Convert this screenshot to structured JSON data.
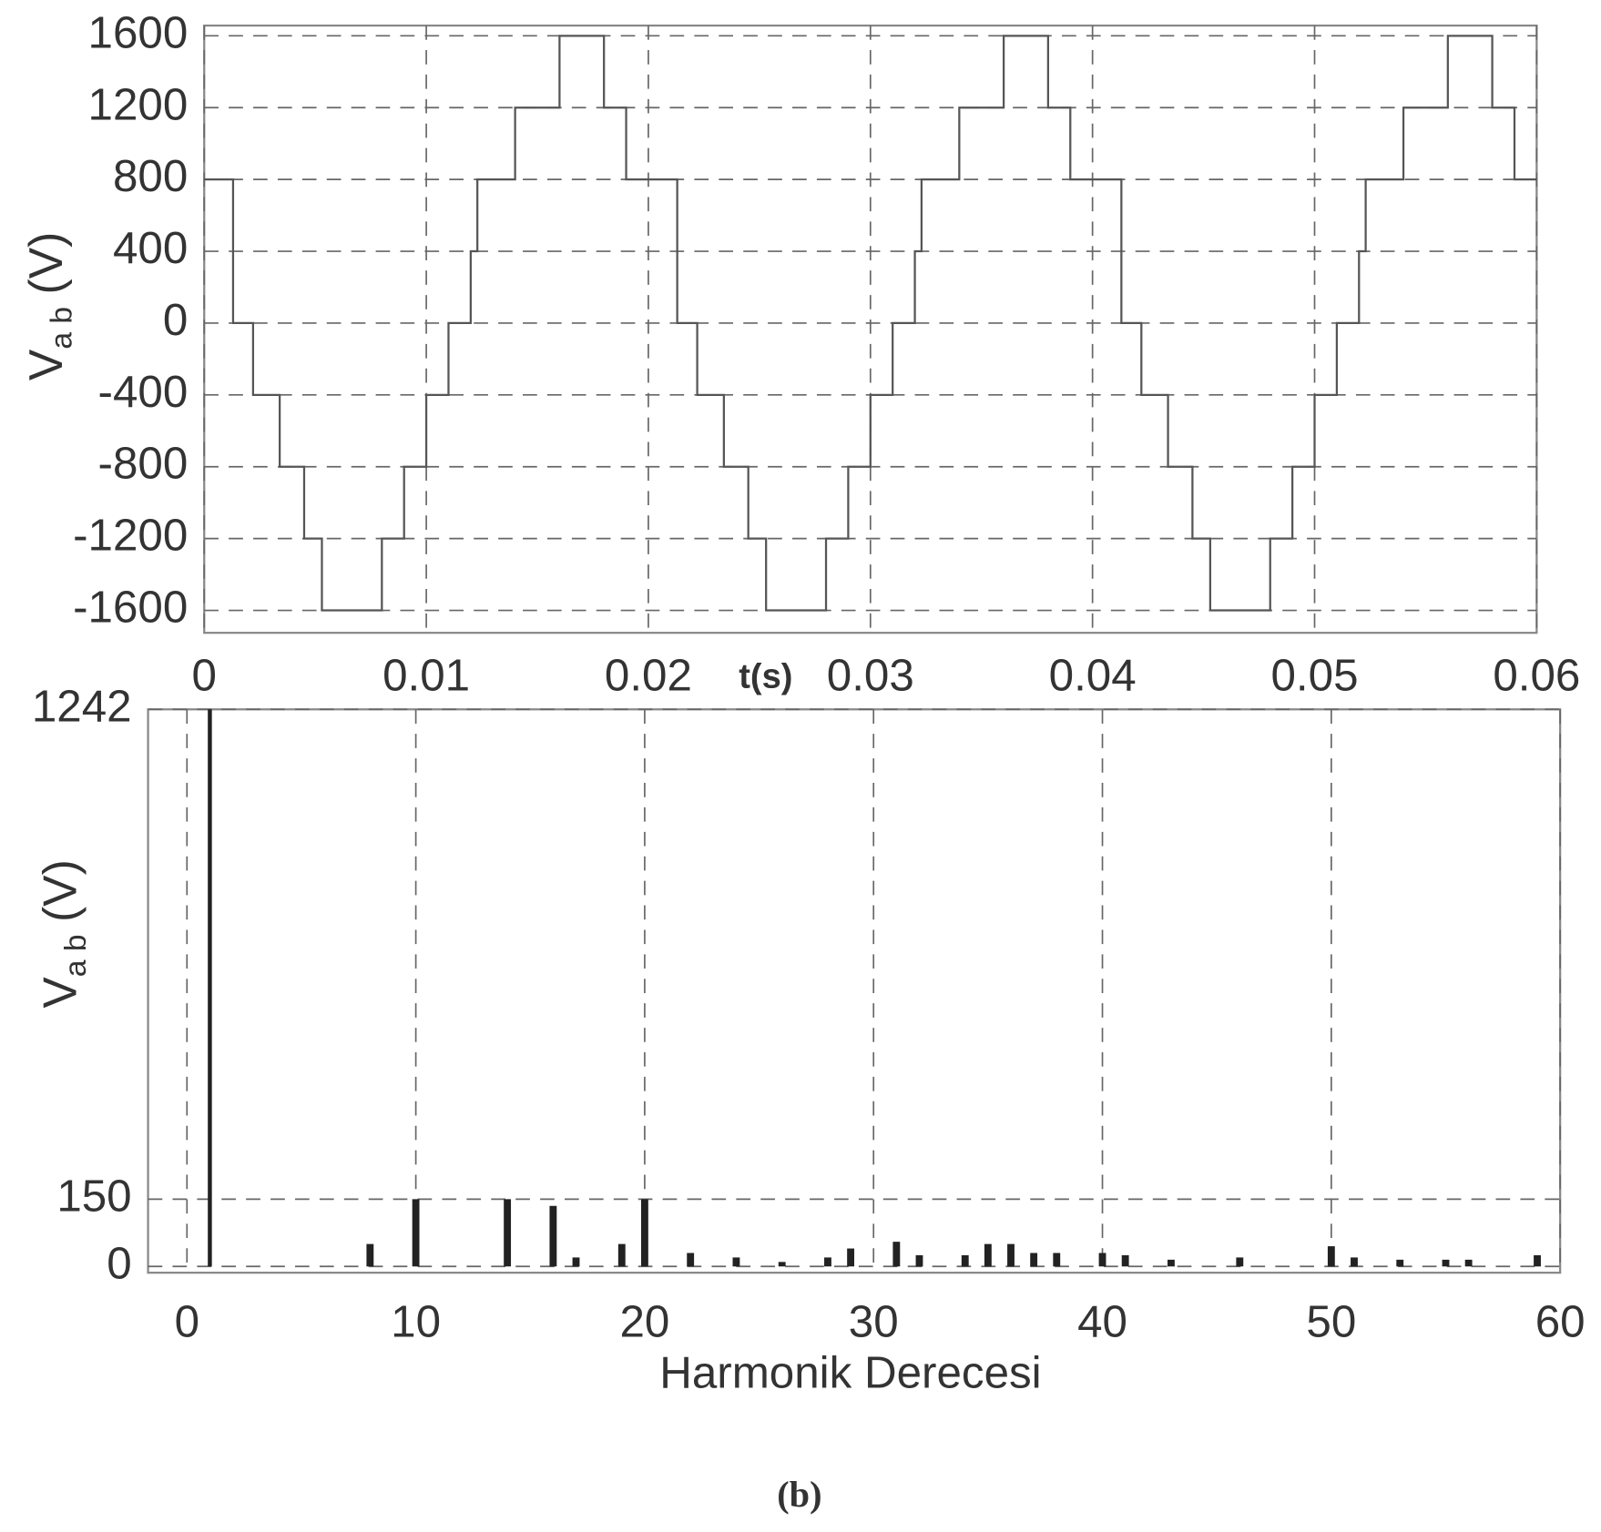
{
  "chart_data": [
    {
      "type": "line",
      "xlabel": "t(s)",
      "ylabel_parts": [
        "V",
        "a b",
        "(V)"
      ],
      "x": [
        0,
        0.0013,
        0.0013,
        0.0022,
        0.0022,
        0.0034,
        0.0034,
        0.0045,
        0.0045,
        0.0053,
        0.0053,
        0.008,
        0.008,
        0.009,
        0.009,
        0.01,
        0.01,
        0.011,
        0.011,
        0.012,
        0.012,
        0.0123,
        0.0123,
        0.014,
        0.014,
        0.016,
        0.016,
        0.018,
        0.018,
        0.019,
        0.019,
        0.02,
        0.0213,
        0.0213,
        0.0222,
        0.0222,
        0.0234,
        0.0234,
        0.0245,
        0.0245,
        0.0253,
        0.0253,
        0.028,
        0.028,
        0.029,
        0.029,
        0.03,
        0.03,
        0.031,
        0.031,
        0.032,
        0.032,
        0.0323,
        0.0323,
        0.034,
        0.034,
        0.036,
        0.036,
        0.038,
        0.038,
        0.039,
        0.039,
        0.04,
        0.0413,
        0.0413,
        0.0422,
        0.0422,
        0.0434,
        0.0434,
        0.0445,
        0.0445,
        0.0453,
        0.0453,
        0.048,
        0.048,
        0.049,
        0.049,
        0.05,
        0.05,
        0.051,
        0.051,
        0.052,
        0.052,
        0.0523,
        0.0523,
        0.054,
        0.054,
        0.056,
        0.056,
        0.058,
        0.058,
        0.059,
        0.059,
        0.06
      ],
      "values": [
        800,
        800,
        0,
        0,
        -400,
        -400,
        -800,
        -800,
        -1200,
        -1200,
        -1600,
        -1600,
        -1200,
        -1200,
        -800,
        -800,
        -400,
        -400,
        0,
        0,
        400,
        400,
        800,
        800,
        1200,
        1200,
        1600,
        1600,
        1200,
        1200,
        800,
        800,
        800,
        0,
        0,
        -400,
        -400,
        -800,
        -800,
        -1200,
        -1200,
        -1600,
        -1600,
        -1200,
        -1200,
        -800,
        -800,
        -400,
        -400,
        0,
        0,
        400,
        400,
        800,
        800,
        1200,
        1200,
        1600,
        1600,
        1200,
        1200,
        800,
        800,
        800,
        0,
        0,
        -400,
        -400,
        -800,
        -800,
        -1200,
        -1200,
        -1600,
        -1600,
        -1200,
        -1200,
        -800,
        -800,
        -400,
        -400,
        0,
        0,
        400,
        400,
        800,
        800,
        1200,
        1200,
        1600,
        1600,
        1200,
        1200,
        800,
        800
      ],
      "color": "#555555",
      "xlim": [
        0,
        0.06
      ],
      "xticks": [
        0,
        0.01,
        0.02,
        0.03,
        0.04,
        0.05,
        0.06
      ],
      "ylim": [
        -1725,
        1657
      ],
      "yticks": [
        -1600,
        -1200,
        -800,
        -400,
        0,
        400,
        800,
        1200,
        1600
      ],
      "grid": true
    },
    {
      "type": "bar",
      "xlabel": "Harmonik Derecesi",
      "ylabel_parts": [
        "V",
        "a b",
        "(V)"
      ],
      "x": [
        1,
        8,
        10,
        14,
        16,
        17,
        19,
        20,
        22,
        24,
        26,
        28,
        29,
        31,
        32,
        34,
        35,
        36,
        37,
        38,
        40,
        41,
        43,
        46,
        50,
        51,
        53,
        55,
        56,
        59
      ],
      "values": [
        1242,
        50,
        150,
        150,
        135,
        20,
        50,
        150,
        30,
        20,
        10,
        20,
        40,
        55,
        25,
        25,
        50,
        50,
        30,
        30,
        30,
        25,
        15,
        20,
        45,
        20,
        15,
        15,
        15,
        25
      ],
      "color": "#222222",
      "xlim": [
        -1.7,
        60
      ],
      "xticks": [
        0,
        10,
        20,
        30,
        40,
        50,
        60
      ],
      "ylim": [
        -14,
        1242
      ],
      "yticks": [
        0,
        150,
        1242
      ],
      "grid": true
    }
  ],
  "caption": "(b)"
}
